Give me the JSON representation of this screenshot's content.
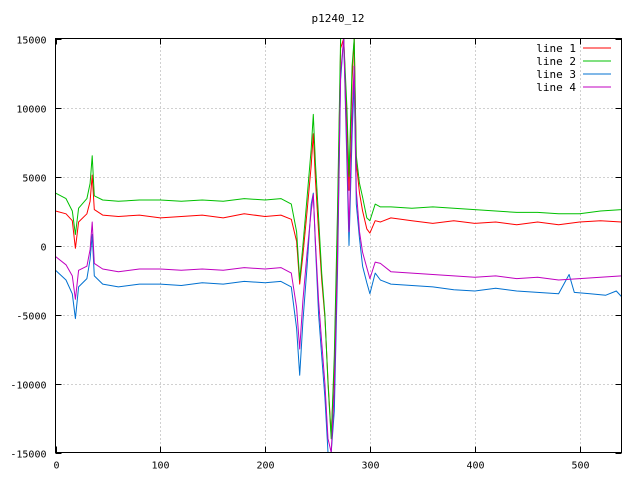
{
  "chart_data": {
    "type": "line",
    "title": "p1240_12",
    "xlabel": "",
    "ylabel": "",
    "xlim": [
      0,
      540
    ],
    "ylim": [
      -15000,
      15000
    ],
    "xticks": [
      0,
      100,
      200,
      300,
      400,
      500
    ],
    "yticks": [
      -15000,
      -10000,
      -5000,
      0,
      5000,
      10000,
      15000
    ],
    "grid": true,
    "legend_position": "top-right",
    "series": [
      {
        "name": "line 1",
        "color": "#ff0000",
        "points": [
          [
            0,
            2500
          ],
          [
            10,
            2300
          ],
          [
            16,
            1800
          ],
          [
            19,
            -200
          ],
          [
            22,
            1700
          ],
          [
            30,
            2300
          ],
          [
            33,
            3200
          ],
          [
            35,
            5100
          ],
          [
            37,
            2600
          ],
          [
            45,
            2200
          ],
          [
            60,
            2100
          ],
          [
            80,
            2200
          ],
          [
            100,
            2000
          ],
          [
            120,
            2100
          ],
          [
            140,
            2200
          ],
          [
            160,
            2000
          ],
          [
            180,
            2300
          ],
          [
            200,
            2100
          ],
          [
            215,
            2200
          ],
          [
            225,
            1900
          ],
          [
            230,
            300
          ],
          [
            233,
            -2800
          ],
          [
            236,
            -700
          ],
          [
            240,
            2500
          ],
          [
            244,
            5800
          ],
          [
            246,
            8100
          ],
          [
            248,
            4800
          ],
          [
            251,
            1000
          ],
          [
            254,
            -2500
          ],
          [
            257,
            -5200
          ],
          [
            260,
            -9800
          ],
          [
            263,
            -13800
          ],
          [
            266,
            -9000
          ],
          [
            269,
            1500
          ],
          [
            272,
            14300
          ],
          [
            275,
            15000
          ],
          [
            278,
            9000
          ],
          [
            280,
            4000
          ],
          [
            283,
            12000
          ],
          [
            285,
            15000
          ],
          [
            287,
            6000
          ],
          [
            290,
            3800
          ],
          [
            293,
            2500
          ],
          [
            297,
            1200
          ],
          [
            300,
            900
          ],
          [
            305,
            1800
          ],
          [
            310,
            1700
          ],
          [
            320,
            2000
          ],
          [
            340,
            1800
          ],
          [
            360,
            1600
          ],
          [
            380,
            1800
          ],
          [
            400,
            1600
          ],
          [
            420,
            1700
          ],
          [
            440,
            1500
          ],
          [
            460,
            1700
          ],
          [
            480,
            1500
          ],
          [
            500,
            1700
          ],
          [
            520,
            1800
          ],
          [
            540,
            1700
          ]
        ]
      },
      {
        "name": "line 2",
        "color": "#00c000",
        "points": [
          [
            0,
            3800
          ],
          [
            10,
            3400
          ],
          [
            16,
            2500
          ],
          [
            19,
            800
          ],
          [
            22,
            2700
          ],
          [
            30,
            3400
          ],
          [
            33,
            4500
          ],
          [
            35,
            6500
          ],
          [
            37,
            3600
          ],
          [
            45,
            3300
          ],
          [
            60,
            3200
          ],
          [
            80,
            3300
          ],
          [
            100,
            3300
          ],
          [
            120,
            3200
          ],
          [
            140,
            3300
          ],
          [
            160,
            3200
          ],
          [
            180,
            3400
          ],
          [
            200,
            3300
          ],
          [
            215,
            3400
          ],
          [
            225,
            3000
          ],
          [
            230,
            1000
          ],
          [
            233,
            -2500
          ],
          [
            236,
            0
          ],
          [
            240,
            3500
          ],
          [
            244,
            7000
          ],
          [
            246,
            9500
          ],
          [
            248,
            6000
          ],
          [
            251,
            2000
          ],
          [
            254,
            -2000
          ],
          [
            257,
            -5000
          ],
          [
            260,
            -10000
          ],
          [
            263,
            -14000
          ],
          [
            266,
            -8000
          ],
          [
            269,
            2500
          ],
          [
            272,
            15000
          ],
          [
            275,
            15000
          ],
          [
            278,
            10000
          ],
          [
            280,
            5000
          ],
          [
            283,
            13000
          ],
          [
            285,
            15000
          ],
          [
            287,
            6500
          ],
          [
            290,
            4500
          ],
          [
            293,
            3500
          ],
          [
            297,
            2000
          ],
          [
            300,
            1800
          ],
          [
            305,
            3000
          ],
          [
            310,
            2800
          ],
          [
            320,
            2800
          ],
          [
            340,
            2700
          ],
          [
            360,
            2800
          ],
          [
            380,
            2700
          ],
          [
            400,
            2600
          ],
          [
            420,
            2500
          ],
          [
            440,
            2400
          ],
          [
            460,
            2400
          ],
          [
            480,
            2300
          ],
          [
            500,
            2300
          ],
          [
            520,
            2500
          ],
          [
            540,
            2600
          ]
        ]
      },
      {
        "name": "line 3",
        "color": "#0070d0",
        "points": [
          [
            0,
            -1800
          ],
          [
            10,
            -2500
          ],
          [
            16,
            -3500
          ],
          [
            19,
            -5300
          ],
          [
            22,
            -3000
          ],
          [
            30,
            -2400
          ],
          [
            33,
            -1000
          ],
          [
            35,
            800
          ],
          [
            37,
            -2200
          ],
          [
            45,
            -2800
          ],
          [
            60,
            -3000
          ],
          [
            80,
            -2800
          ],
          [
            100,
            -2800
          ],
          [
            120,
            -2900
          ],
          [
            140,
            -2700
          ],
          [
            160,
            -2800
          ],
          [
            180,
            -2600
          ],
          [
            200,
            -2700
          ],
          [
            215,
            -2600
          ],
          [
            225,
            -3000
          ],
          [
            230,
            -6000
          ],
          [
            233,
            -9400
          ],
          [
            236,
            -5500
          ],
          [
            240,
            -1500
          ],
          [
            244,
            3000
          ],
          [
            246,
            3800
          ],
          [
            248,
            0
          ],
          [
            251,
            -5000
          ],
          [
            254,
            -8000
          ],
          [
            257,
            -11000
          ],
          [
            260,
            -15000
          ],
          [
            263,
            -15000
          ],
          [
            266,
            -12000
          ],
          [
            269,
            -2000
          ],
          [
            272,
            12000
          ],
          [
            275,
            15000
          ],
          [
            278,
            6000
          ],
          [
            280,
            0
          ],
          [
            283,
            8000
          ],
          [
            285,
            12000
          ],
          [
            287,
            3000
          ],
          [
            290,
            500
          ],
          [
            293,
            -1500
          ],
          [
            297,
            -2700
          ],
          [
            300,
            -3500
          ],
          [
            305,
            -2000
          ],
          [
            310,
            -2500
          ],
          [
            320,
            -2800
          ],
          [
            340,
            -2900
          ],
          [
            360,
            -3000
          ],
          [
            380,
            -3200
          ],
          [
            400,
            -3300
          ],
          [
            420,
            -3100
          ],
          [
            440,
            -3300
          ],
          [
            460,
            -3400
          ],
          [
            480,
            -3500
          ],
          [
            490,
            -2100
          ],
          [
            495,
            -3400
          ],
          [
            510,
            -3500
          ],
          [
            525,
            -3600
          ],
          [
            535,
            -3300
          ],
          [
            540,
            -3700
          ]
        ]
      },
      {
        "name": "line 4",
        "color": "#c000c0",
        "points": [
          [
            0,
            -800
          ],
          [
            10,
            -1400
          ],
          [
            16,
            -2200
          ],
          [
            19,
            -3900
          ],
          [
            22,
            -1800
          ],
          [
            30,
            -1500
          ],
          [
            33,
            -300
          ],
          [
            35,
            1700
          ],
          [
            37,
            -1300
          ],
          [
            45,
            -1700
          ],
          [
            60,
            -1900
          ],
          [
            80,
            -1700
          ],
          [
            100,
            -1700
          ],
          [
            120,
            -1800
          ],
          [
            140,
            -1700
          ],
          [
            160,
            -1800
          ],
          [
            180,
            -1600
          ],
          [
            200,
            -1700
          ],
          [
            215,
            -1600
          ],
          [
            225,
            -2000
          ],
          [
            230,
            -4500
          ],
          [
            233,
            -7500
          ],
          [
            236,
            -4000
          ],
          [
            240,
            -500
          ],
          [
            244,
            2500
          ],
          [
            246,
            3700
          ],
          [
            248,
            300
          ],
          [
            251,
            -4000
          ],
          [
            254,
            -7000
          ],
          [
            257,
            -10000
          ],
          [
            260,
            -14000
          ],
          [
            263,
            -15000
          ],
          [
            266,
            -10500
          ],
          [
            269,
            -1000
          ],
          [
            272,
            12500
          ],
          [
            275,
            15000
          ],
          [
            278,
            7000
          ],
          [
            280,
            1000
          ],
          [
            283,
            9500
          ],
          [
            285,
            13000
          ],
          [
            287,
            4000
          ],
          [
            290,
            1000
          ],
          [
            293,
            -500
          ],
          [
            297,
            -1600
          ],
          [
            300,
            -2400
          ],
          [
            305,
            -1200
          ],
          [
            310,
            -1300
          ],
          [
            320,
            -1900
          ],
          [
            340,
            -2000
          ],
          [
            360,
            -2100
          ],
          [
            380,
            -2200
          ],
          [
            400,
            -2300
          ],
          [
            420,
            -2200
          ],
          [
            440,
            -2400
          ],
          [
            460,
            -2300
          ],
          [
            480,
            -2500
          ],
          [
            500,
            -2400
          ],
          [
            520,
            -2300
          ],
          [
            540,
            -2200
          ]
        ]
      }
    ]
  }
}
